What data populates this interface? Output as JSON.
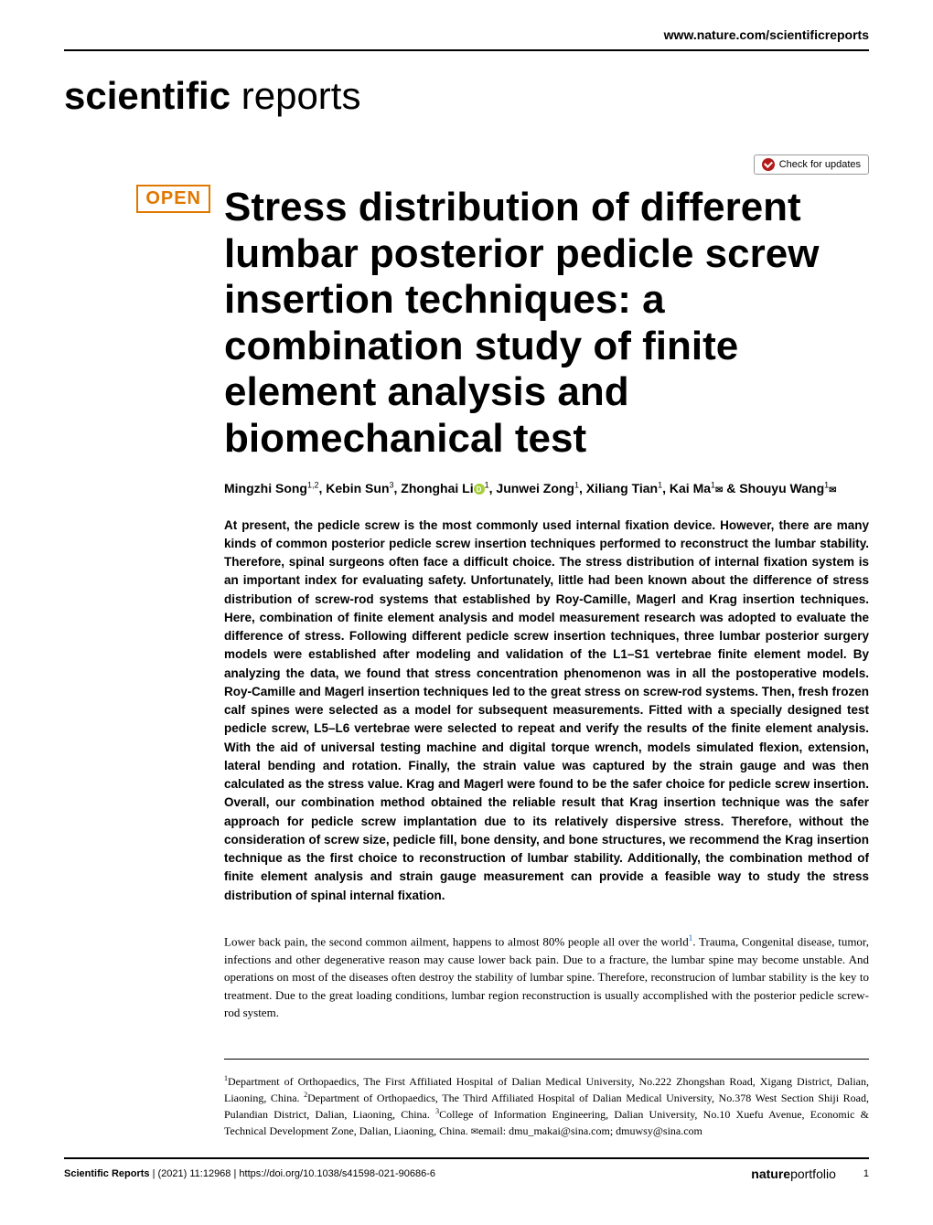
{
  "header": {
    "url": "www.nature.com/scientificreports"
  },
  "journal": {
    "logo_bold": "scientific",
    "logo_light": " reports"
  },
  "badges": {
    "check_updates": "Check for updates",
    "open": "OPEN"
  },
  "article": {
    "title": "Stress distribution of different lumbar posterior pedicle screw insertion techniques: a combination study of finite element analysis and biomechanical test",
    "authors_line1": "Mingzhi Song",
    "authors_sup1": "1,2",
    "authors_sep1": ", Kebin Sun",
    "authors_sup2": "3",
    "authors_sep2": ", Zhonghai Li",
    "authors_sup3": "1",
    "authors_sep3": ", Junwei Zong",
    "authors_sup4": "1",
    "authors_sep4": ", Xiliang Tian",
    "authors_sup5": "1",
    "authors_sep5": ", Kai Ma",
    "authors_sup6": "1",
    "authors_sep6": " & Shouyu Wang",
    "authors_sup7": "1",
    "abstract": "At present, the pedicle screw is the most commonly used internal fixation device. However, there are many kinds of common posterior pedicle screw insertion techniques performed to reconstruct the lumbar stability. Therefore, spinal surgeons often face a difficult choice. The stress distribution of internal fixation system is an important index for evaluating safety. Unfortunately, little had been known about the difference of stress distribution of screw-rod systems that established by Roy-Camille, Magerl and Krag insertion techniques. Here, combination of finite element analysis and model measurement research was adopted to evaluate the difference of stress. Following different pedicle screw insertion techniques, three lumbar posterior surgery models were established after modeling and validation of the L1–S1 vertebrae finite element model. By analyzing the data, we found that stress concentration phenomenon was in all the postoperative models. Roy-Camille and Magerl insertion techniques led to the great stress on screw-rod systems. Then, fresh frozen calf spines were selected as a model for subsequent measurements. Fitted with a specially designed test pedicle screw, L5–L6 vertebrae were selected to repeat and verify the results of the finite element analysis. With the aid of universal testing machine and digital torque wrench, models simulated flexion, extension, lateral bending and rotation. Finally, the strain value was captured by the strain gauge and was then calculated as the stress value. Krag and Magerl were found to be the safer choice for pedicle screw insertion. Overall, our combination method obtained the reliable result that Krag insertion technique was the safer approach for pedicle screw implantation due to its relatively dispersive stress. Therefore, without the consideration of screw size, pedicle fill, bone density, and bone structures, we recommend the Krag insertion technique as the first choice to reconstruction of lumbar stability. Additionally, the combination method of finite element analysis and strain gauge measurement can provide a feasible way to study the stress distribution of spinal internal fixation.",
    "body_p1_a": "Lower back pain, the second common ailment, happens to almost 80% people all over the world",
    "body_p1_ref": "1",
    "body_p1_b": ". Trauma, Congenital disease, tumor, infections and other degenerative reason may cause lower back pain. Due to a fracture, the lumbar spine may become unstable. And operations on most of the diseases often destroy the stability of lumbar spine. Therefore, reconstrucion of lumbar stability is the key to treatment. Due to the great loading conditions, lumbar region reconstruction is usually accomplished with the posterior pedicle screw-rod system."
  },
  "affiliations": {
    "aff1_sup": "1",
    "aff1": "Department of Orthopaedics, The First Affiliated Hospital of Dalian Medical University, No.222 Zhongshan Road, Xigang District, Dalian, Liaoning, China. ",
    "aff2_sup": "2",
    "aff2": "Department of Orthopaedics, The Third Affiliated Hospital of Dalian Medical University, No.378 West Section Shiji Road, Pulandian District, Dalian, Liaoning, China. ",
    "aff3_sup": "3",
    "aff3": "College of Information Engineering, Dalian University, No.10 Xuefu Avenue, Economic & Technical Development Zone, Dalian, Liaoning, China. ",
    "email_label": "email: ",
    "email1": "dmu_makai@sina.com; ",
    "email2": "dmuwsy@sina.com"
  },
  "footer": {
    "journal": "Scientific Reports",
    "citation": " |         (2021) 11:12968  | ",
    "doi": "https://doi.org/10.1038/s41598-021-90686-6",
    "nature": "nature",
    "portfolio": "portfolio",
    "page": "1"
  },
  "colors": {
    "open_badge": "#e07800",
    "orcid": "#a6ce39",
    "check_icon": "#b31b1b",
    "link": "#0066cc",
    "text": "#000000",
    "background": "#ffffff"
  },
  "typography": {
    "title_size": 44,
    "logo_size": 42,
    "abstract_size": 13.5,
    "body_size": 13,
    "footer_size": 11
  }
}
